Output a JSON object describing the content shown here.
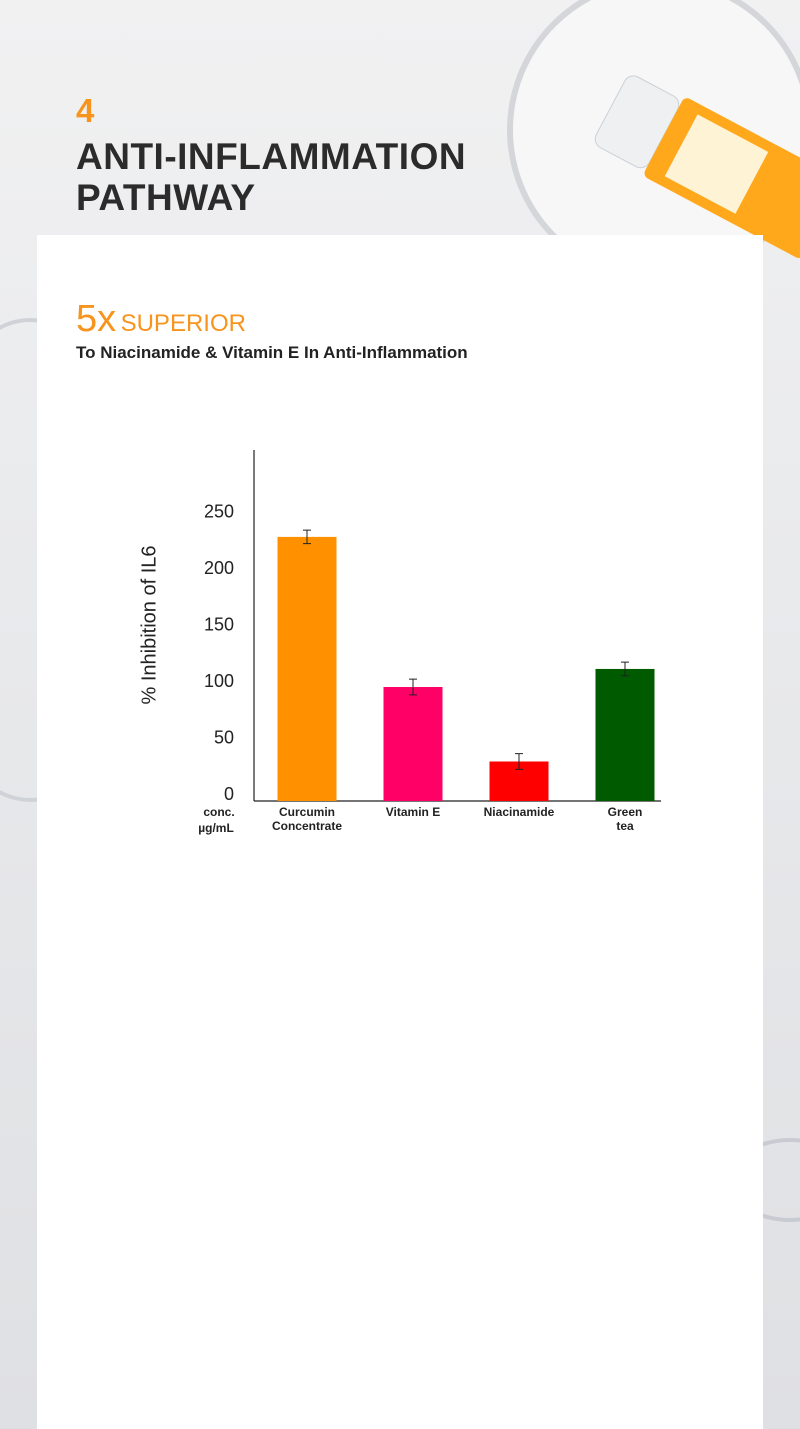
{
  "header": {
    "number": "4",
    "title_lines": [
      "ANTI-INFLAMMATION",
      "PATHWAY"
    ]
  },
  "headline": {
    "highlight": "5x",
    "rest": "SUPERIOR"
  },
  "subtitle": "To Niacinamide & Vitamin E In Anti-Inflammation",
  "chart_data": {
    "type": "bar",
    "y_axis_label": "% Inhibition of IL6",
    "x_axis_label_lines": [
      "conc.",
      "µg/mL"
    ],
    "categories": [
      [
        "Curcumin",
        "Concentrate"
      ],
      [
        "Vitamin E"
      ],
      [
        "Niacinamide"
      ],
      [
        "Green",
        "tea"
      ]
    ],
    "values": [
      234,
      101,
      35,
      117
    ],
    "errors": [
      6,
      7,
      7,
      6
    ],
    "colors": [
      "#ff9100",
      "#ff0066",
      "#ff0000",
      "#005a00"
    ],
    "ylim": [
      0,
      311
    ],
    "yticks": [
      0,
      50,
      100,
      150,
      200,
      250
    ],
    "grid": false
  }
}
